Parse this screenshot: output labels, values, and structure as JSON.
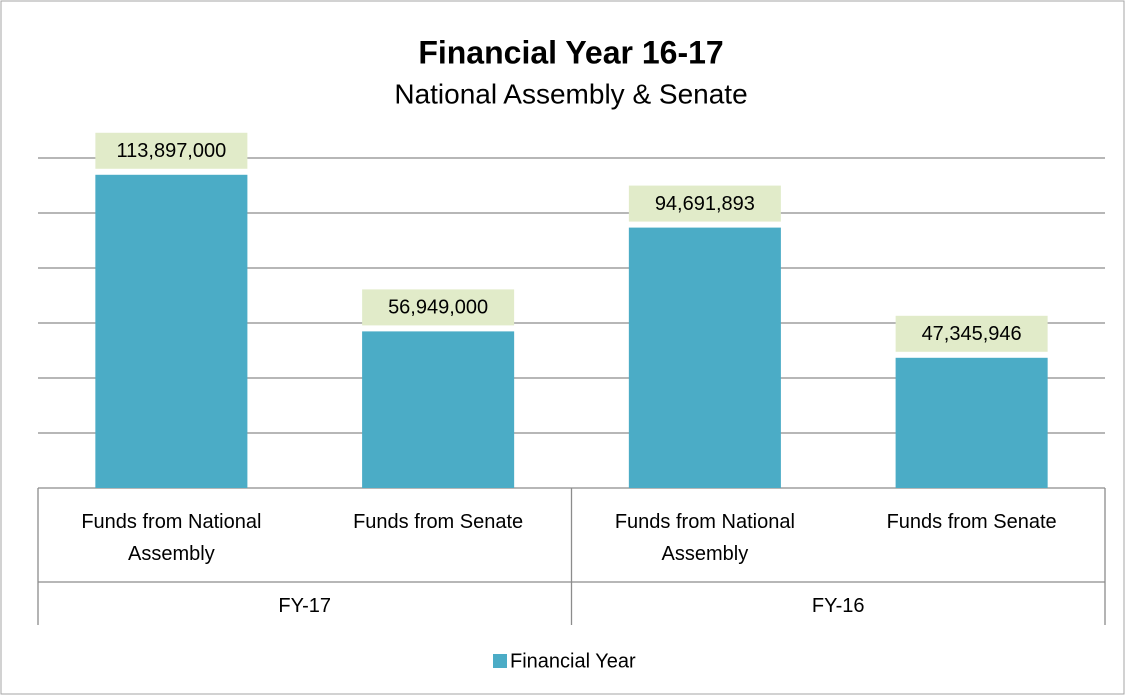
{
  "chart_data": {
    "type": "bar",
    "title": "Financial Year 16-17",
    "subtitle": "National Assembly & Senate",
    "categories": [
      "Funds from National Assembly",
      "Funds from Senate",
      "Funds from National Assembly",
      "Funds from Senate"
    ],
    "groups": [
      {
        "name": "FY-17",
        "size": 2
      },
      {
        "name": "FY-16",
        "size": 2
      }
    ],
    "series": [
      {
        "name": "Financial Year",
        "color": "#4bacc6",
        "values": [
          113897000,
          56949000,
          94691893,
          47345946
        ],
        "value_labels": [
          "113,897,000",
          "56,949,000",
          "94,691,893",
          "47,345,946"
        ]
      }
    ],
    "ylim": [
      0,
      120000000
    ],
    "yticks": [
      0,
      20000000,
      40000000,
      60000000,
      80000000,
      100000000,
      120000000
    ],
    "grid": true,
    "legend": "bottom"
  }
}
